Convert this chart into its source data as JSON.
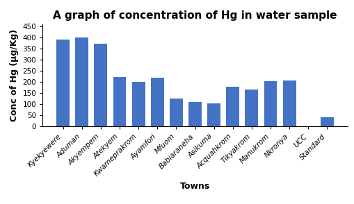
{
  "title": "A graph of concentration of Hg in water sample",
  "xlabel": "Towns",
  "ylabel": "Conc of Hg (μg/Kg)",
  "categories": [
    "Kyekyewere",
    "Aduman",
    "Akyempem",
    "Atekyem",
    "Kwameprakrom",
    "Ayamfori",
    "Mfuom",
    "Babiaraneha",
    "Asikuma",
    "Acquahkrom",
    "Tikyakrom",
    "Manukrom",
    "Nkronya",
    "UCC",
    "Standard"
  ],
  "values": [
    393,
    400,
    372,
    222,
    201,
    221,
    125,
    110,
    105,
    178,
    168,
    205,
    206,
    0,
    40
  ],
  "bar_color": "#4472C4",
  "ylim": [
    0,
    460
  ],
  "yticks": [
    0,
    50,
    100,
    150,
    200,
    250,
    300,
    350,
    400,
    450
  ],
  "title_fontsize": 11,
  "axis_label_fontsize": 9,
  "tick_fontsize": 7.5
}
